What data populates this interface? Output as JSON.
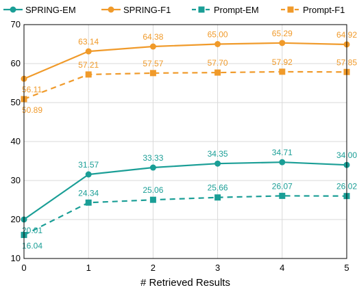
{
  "chart_data": {
    "type": "line",
    "title": "",
    "xlabel": "# Retrieved Results",
    "ylabel": "",
    "x": [
      0,
      1,
      2,
      3,
      4,
      5
    ],
    "xlim": [
      0,
      5
    ],
    "ylim": [
      10,
      70
    ],
    "yticks": [
      10,
      20,
      30,
      40,
      50,
      60,
      70
    ],
    "grid": true,
    "legend_position": "top",
    "series": [
      {
        "name": "SPRING-EM",
        "values": [
          20.01,
          31.57,
          33.33,
          34.35,
          34.71,
          34.0
        ],
        "labels": [
          "20.01",
          "31.57",
          "33.33",
          "34.35",
          "34.71",
          "34.00"
        ],
        "color": "#1a9e96",
        "marker": "circle",
        "dashed": false
      },
      {
        "name": "SPRING-F1",
        "values": [
          56.11,
          63.14,
          64.38,
          65.0,
          65.29,
          64.92
        ],
        "labels": [
          "56.11",
          "63.14",
          "64.38",
          "65.00",
          "65.29",
          "64.92"
        ],
        "color": "#f09a2a",
        "marker": "circle",
        "dashed": false
      },
      {
        "name": "Prompt-EM",
        "values": [
          16.04,
          24.34,
          25.06,
          25.66,
          26.07,
          26.02
        ],
        "labels": [
          "16.04",
          "24.34",
          "25.06",
          "25.66",
          "26.07",
          "26.02"
        ],
        "color": "#1a9e96",
        "marker": "square",
        "dashed": true
      },
      {
        "name": "Prompt-F1",
        "values": [
          50.89,
          57.21,
          57.57,
          57.7,
          57.92,
          57.85
        ],
        "labels": [
          "50.89",
          "57.21",
          "57.57",
          "57.70",
          "57.92",
          "57.85"
        ],
        "color": "#f09a2a",
        "marker": "square",
        "dashed": true
      }
    ]
  }
}
